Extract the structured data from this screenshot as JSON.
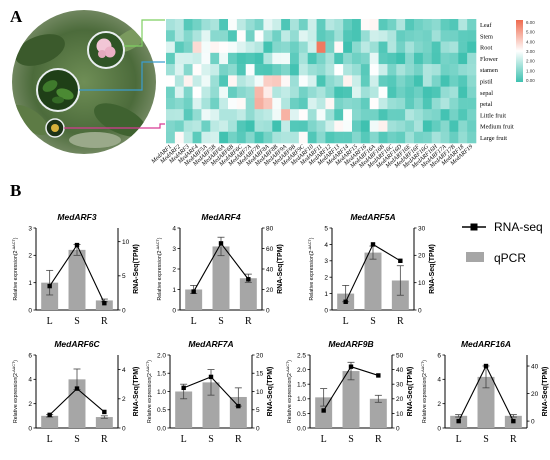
{
  "panel_a": {
    "letter": "A",
    "rows": [
      "Leaf",
      "Stem",
      "Root",
      "Flower",
      "stamen",
      "pistil",
      "sepal",
      "petal",
      "Little fruit",
      "Medium fruit",
      "Large fruit"
    ],
    "columns": [
      "MedARF1",
      "MedARF2",
      "MedARF3",
      "MedARF4",
      "MedARF5A",
      "MedARF5B",
      "MedARF6A",
      "MedARF6B",
      "MedARF6C",
      "MedARF7A",
      "MedARF7B",
      "MedARF8A",
      "MedARF8B",
      "MedARF9A",
      "MedARF9B",
      "MedARF9C",
      "MedARF10",
      "MedARF11",
      "MedARF12",
      "MedARF13",
      "MedARF14",
      "MedARF15",
      "MedARF16",
      "MedARF16A",
      "MedARF16B",
      "MedARF16C",
      "MedARF16D",
      "MedARF16E",
      "MedARF16F",
      "MedARF16G",
      "MedARF16H",
      "MedARF17A",
      "MedARF17B",
      "MedARF18",
      "MedARF19"
    ],
    "colorbar_ticks": [
      "6.00",
      "5.00",
      "4.00",
      "3.00",
      "2.00",
      "1.00",
      "0.00"
    ],
    "colors": {
      "low": "#3ec1b0",
      "mid": "#ffffff",
      "high": "#ef6a4e"
    }
  },
  "panel_b": {
    "letter": "B",
    "legend": {
      "line_label": "RNA-seq",
      "bar_label": "qPCR"
    },
    "y_left_label": "Relative expression(2",
    "y_left_sup": "-ΔΔCT",
    "y_left_close": ")",
    "y_right_label": "RNA-Seq(TPM)",
    "bar_color": "#a6a6a6"
  },
  "chart_data": [
    {
      "type": "bar",
      "title": "MedARF3",
      "categories": [
        "L",
        "S",
        "R"
      ],
      "qpcr": [
        1.0,
        2.2,
        0.35
      ],
      "qpcr_err": [
        0.45,
        0.2,
        0.05
      ],
      "rnaseq": [
        3.5,
        9.5,
        1.0
      ],
      "ylim": [
        0,
        3
      ],
      "yticks": [
        0,
        1,
        2,
        3
      ],
      "y2lim": [
        0,
        12
      ],
      "y2ticks": [
        0,
        5,
        10
      ]
    },
    {
      "type": "bar",
      "title": "MedARF4",
      "categories": [
        "L",
        "S",
        "R"
      ],
      "qpcr": [
        1.0,
        3.1,
        1.55
      ],
      "qpcr_err": [
        0.2,
        0.45,
        0.2
      ],
      "rnaseq": [
        18,
        65,
        30
      ],
      "ylim": [
        0,
        4
      ],
      "yticks": [
        0,
        1,
        2,
        3,
        4
      ],
      "y2lim": [
        0,
        80
      ],
      "y2ticks": [
        0,
        20,
        40,
        60,
        80
      ]
    },
    {
      "type": "bar",
      "title": "MedARF5A",
      "categories": [
        "L",
        "S",
        "R"
      ],
      "qpcr": [
        1.0,
        3.5,
        1.8
      ],
      "qpcr_err": [
        0.5,
        0.4,
        0.9
      ],
      "rnaseq": [
        3,
        24,
        18
      ],
      "ylim": [
        0,
        5
      ],
      "yticks": [
        0,
        1,
        2,
        3,
        4,
        5
      ],
      "y2lim": [
        0,
        30
      ],
      "y2ticks": [
        0,
        10,
        20,
        30
      ]
    },
    {
      "type": "bar",
      "title": "MedARF6C",
      "categories": [
        "L",
        "S",
        "R"
      ],
      "qpcr": [
        1.0,
        4.0,
        0.9
      ],
      "qpcr_err": [
        0.1,
        0.85,
        0.1
      ],
      "rnaseq": [
        0.9,
        2.7,
        1.1
      ],
      "ylim": [
        0,
        6
      ],
      "yticks": [
        0,
        2,
        4,
        6
      ],
      "y2lim": [
        0,
        5
      ],
      "y2ticks": [
        0,
        2,
        4
      ]
    },
    {
      "type": "bar",
      "title": "MedARF7A",
      "categories": [
        "L",
        "S",
        "R"
      ],
      "qpcr": [
        1.0,
        1.25,
        0.85
      ],
      "qpcr_err": [
        0.2,
        0.35,
        0.25
      ],
      "rnaseq": [
        11,
        14,
        6
      ],
      "ylim": [
        0,
        2
      ],
      "yticks": [
        0.0,
        0.5,
        1.0,
        1.5,
        2.0
      ],
      "y2lim": [
        0,
        20
      ],
      "y2ticks": [
        0,
        5,
        10,
        15,
        20
      ]
    },
    {
      "type": "bar",
      "title": "MedARF9B",
      "categories": [
        "L",
        "S",
        "R"
      ],
      "qpcr": [
        1.05,
        1.95,
        1.0
      ],
      "qpcr_err": [
        0.3,
        0.3,
        0.12
      ],
      "rnaseq": [
        12,
        42,
        36
      ],
      "ylim": [
        0,
        2.5
      ],
      "yticks": [
        0.0,
        0.5,
        1.0,
        1.5,
        2.0,
        2.5
      ],
      "y2lim": [
        0,
        50
      ],
      "y2ticks": [
        0,
        10,
        20,
        30,
        40,
        50
      ]
    },
    {
      "type": "bar",
      "title": "MedARF16A",
      "categories": [
        "L",
        "S",
        "R"
      ],
      "qpcr": [
        1.0,
        4.2,
        1.0
      ],
      "qpcr_err": [
        0.1,
        0.9,
        0.1
      ],
      "rnaseq": [
        0,
        40,
        0
      ],
      "ylim": [
        0,
        6
      ],
      "yticks": [
        0,
        2,
        4,
        6
      ],
      "y2lim": [
        -5,
        48
      ],
      "y2ticks": [
        0,
        20,
        40
      ]
    }
  ]
}
